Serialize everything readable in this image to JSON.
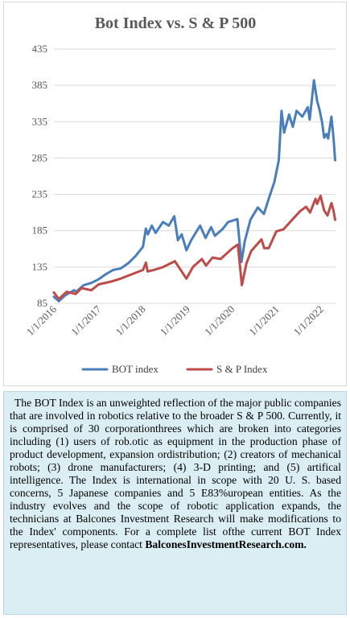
{
  "chart_data": {
    "type": "line",
    "title": "Bot Index vs. S & P 500",
    "xlabel": "",
    "ylabel": "",
    "x_ticks": [
      "1/1/2016",
      "1/1/2017",
      "1/1/2018",
      "1/1/2019",
      "1/1/2020",
      "1/1/2021",
      "1/1/2022"
    ],
    "y_ticks": [
      85,
      135,
      185,
      235,
      285,
      335,
      385,
      435
    ],
    "ylim": [
      85,
      435
    ],
    "xlim": [
      "2016-01-01",
      "2022-05-01"
    ],
    "grid": "horizontal",
    "legend": "bottom",
    "series": [
      {
        "name": "BOT index",
        "color": "#4a7ebb",
        "points": [
          [
            "2016-01-01",
            94
          ],
          [
            "2016-02-10",
            88
          ],
          [
            "2016-04-01",
            96
          ],
          [
            "2016-06-15",
            103
          ],
          [
            "2016-07-01",
            101
          ],
          [
            "2016-09-01",
            110
          ],
          [
            "2016-11-01",
            113
          ],
          [
            "2017-01-01",
            118
          ],
          [
            "2017-03-01",
            125
          ],
          [
            "2017-05-01",
            131
          ],
          [
            "2017-07-01",
            133
          ],
          [
            "2017-09-01",
            140
          ],
          [
            "2017-11-01",
            150
          ],
          [
            "2018-01-01",
            163
          ],
          [
            "2018-01-25",
            188
          ],
          [
            "2018-02-10",
            180
          ],
          [
            "2018-03-15",
            192
          ],
          [
            "2018-04-15",
            182
          ],
          [
            "2018-06-15",
            197
          ],
          [
            "2018-08-01",
            192
          ],
          [
            "2018-09-15",
            205
          ],
          [
            "2018-10-15",
            172
          ],
          [
            "2018-11-15",
            180
          ],
          [
            "2018-12-24",
            158
          ],
          [
            "2019-02-01",
            172
          ],
          [
            "2019-04-15",
            192
          ],
          [
            "2019-05-30",
            175
          ],
          [
            "2019-07-15",
            190
          ],
          [
            "2019-08-15",
            178
          ],
          [
            "2019-10-15",
            187
          ],
          [
            "2019-12-01",
            197
          ],
          [
            "2020-02-15",
            201
          ],
          [
            "2020-03-20",
            142
          ],
          [
            "2020-04-15",
            170
          ],
          [
            "2020-06-01",
            200
          ],
          [
            "2020-08-01",
            217
          ],
          [
            "2020-09-20",
            208
          ],
          [
            "2020-11-01",
            230
          ],
          [
            "2020-12-15",
            252
          ],
          [
            "2021-01-20",
            282
          ],
          [
            "2021-02-12",
            350
          ],
          [
            "2021-03-05",
            320
          ],
          [
            "2021-04-15",
            345
          ],
          [
            "2021-05-15",
            328
          ],
          [
            "2021-06-15",
            350
          ],
          [
            "2021-08-01",
            342
          ],
          [
            "2021-09-15",
            355
          ],
          [
            "2021-10-01",
            338
          ],
          [
            "2021-11-05",
            392
          ],
          [
            "2021-12-01",
            364
          ],
          [
            "2021-12-20",
            352
          ],
          [
            "2022-01-10",
            335
          ],
          [
            "2022-01-28",
            313
          ],
          [
            "2022-02-15",
            318
          ],
          [
            "2022-03-01",
            312
          ],
          [
            "2022-03-28",
            342
          ],
          [
            "2022-04-15",
            312
          ],
          [
            "2022-04-28",
            282
          ]
        ]
      },
      {
        "name": "S & P Index",
        "color": "#be4b48",
        "points": [
          [
            "2016-01-01",
            100
          ],
          [
            "2016-02-11",
            91
          ],
          [
            "2016-04-15",
            101
          ],
          [
            "2016-06-27",
            98
          ],
          [
            "2016-08-15",
            106
          ],
          [
            "2016-11-03",
            103
          ],
          [
            "2017-01-01",
            111
          ],
          [
            "2017-04-15",
            115
          ],
          [
            "2017-07-01",
            119
          ],
          [
            "2017-10-01",
            125
          ],
          [
            "2018-01-01",
            131
          ],
          [
            "2018-01-26",
            141
          ],
          [
            "2018-02-08",
            129
          ],
          [
            "2018-04-01",
            131
          ],
          [
            "2018-06-15",
            135
          ],
          [
            "2018-09-20",
            143
          ],
          [
            "2018-10-30",
            133
          ],
          [
            "2018-12-24",
            119
          ],
          [
            "2019-02-15",
            135
          ],
          [
            "2019-04-30",
            146
          ],
          [
            "2019-06-03",
            137
          ],
          [
            "2019-07-26",
            148
          ],
          [
            "2019-10-01",
            146
          ],
          [
            "2019-12-31",
            160
          ],
          [
            "2020-02-19",
            166
          ],
          [
            "2020-03-23",
            110
          ],
          [
            "2020-04-30",
            140
          ],
          [
            "2020-06-08",
            157
          ],
          [
            "2020-08-31",
            173
          ],
          [
            "2020-09-23",
            161
          ],
          [
            "2020-10-30",
            161
          ],
          [
            "2020-12-31",
            184
          ],
          [
            "2021-03-01",
            187
          ],
          [
            "2021-05-15",
            201
          ],
          [
            "2021-07-15",
            212
          ],
          [
            "2021-09-01",
            218
          ],
          [
            "2021-10-04",
            210
          ],
          [
            "2021-11-18",
            229
          ],
          [
            "2021-12-01",
            222
          ],
          [
            "2021-12-29",
            233
          ],
          [
            "2022-01-27",
            213
          ],
          [
            "2022-02-24",
            206
          ],
          [
            "2022-03-29",
            223
          ],
          [
            "2022-04-15",
            212
          ],
          [
            "2022-04-28",
            200
          ]
        ]
      }
    ]
  },
  "description": {
    "body": "The BOT Index is an unweighted reflection of the major public companies that are involved in robotics relative to the broader S & P 500. Currently, it is comprised of 30 corporationthrees which are broken into categories including (1) users of rob.otic as equipment in the production phase of product development, expansion ordistribution; (2) creators of mechanical robots; (3) drone manufacturers; (4) 3-D printing; and (5) artifical intelligence. The Index is international in scope with 20 U. S. based concerns, 5 Japanese companies and 5 E83%uropean entities. As the industry evolves and the scope of robotic application expands, the technicians at Balcones Investment Research will make modifications to the Index' components. For a  complete list ofthe current BOT Index representatives, please contact",
    "link": "BalconesInvestmentResearch.com",
    "end": "."
  }
}
